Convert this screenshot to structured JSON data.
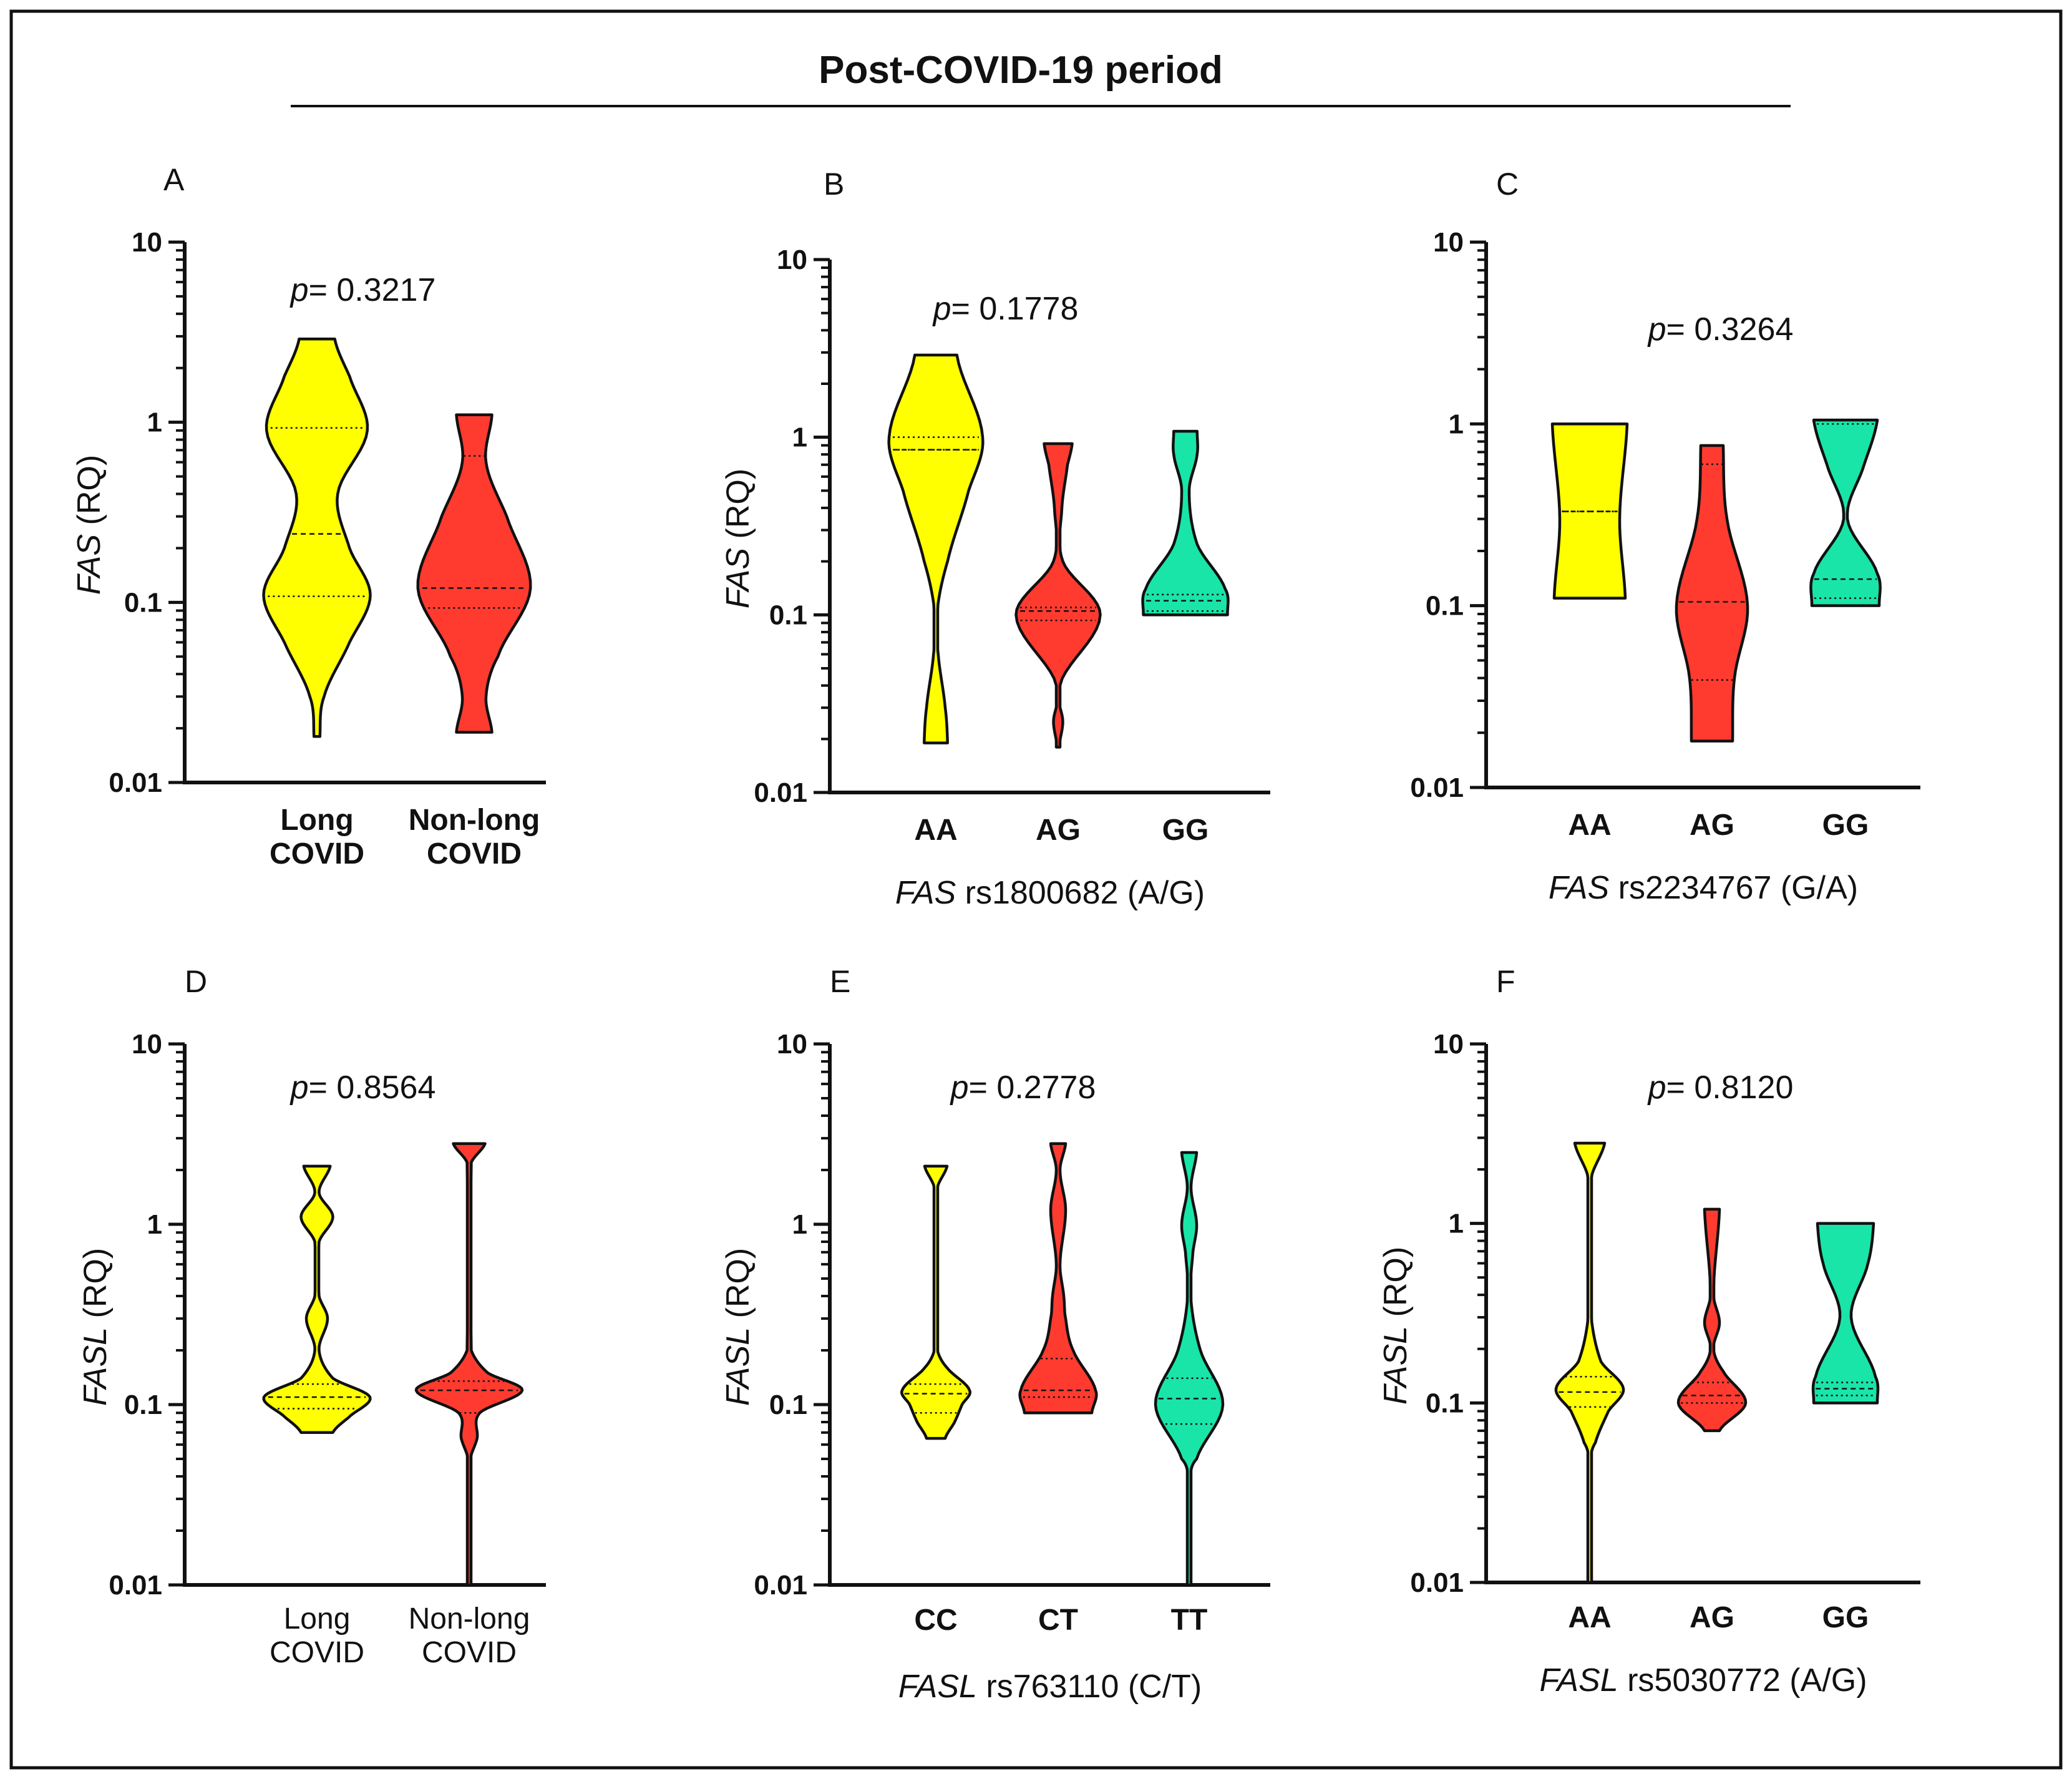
{
  "figure": {
    "title": "Post-COVID-19 period",
    "colors": {
      "yellow": "#FFFF00",
      "red": "#FF3B30",
      "teal": "#19E5A8",
      "stroke": "#111111"
    }
  },
  "chart_data": [
    {
      "id": "A",
      "type": "violin",
      "scale": "log",
      "ylim": [
        0.01,
        10
      ],
      "yticks": [
        "0.01",
        "0.1",
        "1",
        "10"
      ],
      "ylabel_gene": "FAS",
      "ylabel_unit": " (RQ)",
      "p_prefix": "p",
      "p_value": "= 0.3217",
      "xlabel_gene": "",
      "xlabel_rest": "",
      "bold_categories": true,
      "groups": [
        {
          "label": [
            "Long",
            "COVID"
          ],
          "color": "yellow",
          "min": 0.018,
          "max": 2.9,
          "median": 0.24,
          "q1": 0.108,
          "q3": 0.93,
          "profile": [
            [
              0.018,
              0.05
            ],
            [
              0.03,
              0.12
            ],
            [
              0.06,
              0.55
            ],
            [
              0.11,
              0.9
            ],
            [
              0.2,
              0.55
            ],
            [
              0.4,
              0.35
            ],
            [
              0.9,
              0.85
            ],
            [
              1.8,
              0.55
            ],
            [
              2.9,
              0.3
            ]
          ]
        },
        {
          "label": [
            "Non-long",
            "COVID"
          ],
          "color": "red",
          "min": 0.019,
          "max": 1.1,
          "median": 0.12,
          "q1": 0.093,
          "q3": 0.65,
          "profile": [
            [
              0.019,
              0.3
            ],
            [
              0.03,
              0.2
            ],
            [
              0.05,
              0.4
            ],
            [
              0.12,
              0.95
            ],
            [
              0.3,
              0.55
            ],
            [
              0.6,
              0.2
            ],
            [
              1.1,
              0.3
            ]
          ]
        }
      ]
    },
    {
      "id": "B",
      "type": "violin",
      "scale": "log",
      "ylim": [
        0.01,
        10
      ],
      "yticks": [
        "0.01",
        "0.1",
        "1",
        "10"
      ],
      "ylabel_gene": "FAS",
      "ylabel_unit": " (RQ)",
      "p_prefix": "p",
      "p_value": "= 0.1778",
      "xlabel_gene": "FAS",
      "xlabel_rest": " rs1800682 (A/G)",
      "bold_categories": true,
      "groups": [
        {
          "label": [
            "AA"
          ],
          "color": "yellow",
          "min": 0.019,
          "max": 2.9,
          "median": 0.85,
          "q1": 0.85,
          "q3": 1.0,
          "profile": [
            [
              0.019,
              0.25
            ],
            [
              0.03,
              0.2
            ],
            [
              0.06,
              0.05
            ],
            [
              0.1,
              0.02
            ],
            [
              0.2,
              0.25
            ],
            [
              0.5,
              0.7
            ],
            [
              1.0,
              1.0
            ],
            [
              2.9,
              0.45
            ]
          ]
        },
        {
          "label": [
            "AG"
          ],
          "color": "red",
          "min": 0.018,
          "max": 0.92,
          "median": 0.105,
          "q1": 0.093,
          "q3": 0.11,
          "profile": [
            [
              0.018,
              0.02
            ],
            [
              0.025,
              0.1
            ],
            [
              0.04,
              0.03
            ],
            [
              0.1,
              0.9
            ],
            [
              0.2,
              0.1
            ],
            [
              0.4,
              0.08
            ],
            [
              0.7,
              0.2
            ],
            [
              0.92,
              0.3
            ]
          ]
        },
        {
          "label": [
            "GG"
          ],
          "color": "teal",
          "min": 0.1,
          "max": 1.08,
          "median": 0.12,
          "q1": 0.105,
          "q3": 0.13,
          "profile": [
            [
              0.1,
              0.9
            ],
            [
              0.14,
              0.85
            ],
            [
              0.25,
              0.25
            ],
            [
              0.5,
              0.08
            ],
            [
              0.8,
              0.25
            ],
            [
              1.08,
              0.25
            ]
          ]
        }
      ]
    },
    {
      "id": "C",
      "type": "violin",
      "scale": "log",
      "ylim": [
        0.01,
        10
      ],
      "yticks": [
        "0.01",
        "0.1",
        "1",
        "10"
      ],
      "ylabel_gene": "",
      "ylabel_unit": "",
      "p_prefix": "p",
      "p_value": "= 0.3264",
      "xlabel_gene": "FAS",
      "xlabel_rest": " rs2234767 (G/A)",
      "bold_categories": true,
      "groups": [
        {
          "label": [
            "AA"
          ],
          "color": "yellow",
          "min": 0.11,
          "max": 1.0,
          "median": 0.33,
          "q1": 0.33,
          "q3": 0.33,
          "profile": [
            [
              0.11,
              0.95
            ],
            [
              0.3,
              0.8
            ],
            [
              1.0,
              1.0
            ]
          ]
        },
        {
          "label": [
            "AG"
          ],
          "color": "red",
          "min": 0.018,
          "max": 0.76,
          "median": 0.105,
          "q1": 0.039,
          "q3": 0.6,
          "profile": [
            [
              0.018,
              0.55
            ],
            [
              0.04,
              0.6
            ],
            [
              0.1,
              0.95
            ],
            [
              0.3,
              0.4
            ],
            [
              0.76,
              0.3
            ]
          ]
        },
        {
          "label": [
            "GG"
          ],
          "color": "teal",
          "min": 0.1,
          "max": 1.05,
          "median": 0.14,
          "q1": 0.11,
          "q3": 1.0,
          "profile": [
            [
              0.1,
              0.9
            ],
            [
              0.15,
              0.85
            ],
            [
              0.3,
              0.05
            ],
            [
              0.6,
              0.5
            ],
            [
              1.05,
              0.85
            ]
          ]
        }
      ]
    },
    {
      "id": "D",
      "type": "violin",
      "scale": "log",
      "ylim": [
        0.01,
        10
      ],
      "yticks": [
        "0.01",
        "0.1",
        "1",
        "10"
      ],
      "ylabel_gene": "FASL",
      "ylabel_unit": " (RQ)",
      "p_prefix": "p",
      "p_value": "= 0.8564",
      "xlabel_gene": "",
      "xlabel_rest": "",
      "bold_categories": false,
      "groups": [
        {
          "label": [
            "Long",
            "COVID"
          ],
          "color": "yellow",
          "min": 0.07,
          "max": 2.1,
          "median": 0.11,
          "q1": 0.095,
          "q3": 0.13,
          "profile": [
            [
              0.07,
              0.3
            ],
            [
              0.085,
              0.6
            ],
            [
              0.11,
              1.0
            ],
            [
              0.14,
              0.3
            ],
            [
              0.2,
              0.04
            ],
            [
              0.3,
              0.2
            ],
            [
              0.4,
              0.04
            ],
            [
              0.8,
              0.04
            ],
            [
              1.1,
              0.3
            ],
            [
              1.5,
              0.04
            ],
            [
              2.1,
              0.25
            ]
          ]
        },
        {
          "label": [
            "Non-long",
            "COVID"
          ],
          "color": "red",
          "min": 0.01,
          "max": 2.8,
          "median": 0.12,
          "q1": 0.09,
          "q3": 0.135,
          "profile": [
            [
              0.01,
              0.02
            ],
            [
              0.05,
              0.02
            ],
            [
              0.065,
              0.15
            ],
            [
              0.09,
              0.2
            ],
            [
              0.12,
              1.0
            ],
            [
              0.15,
              0.35
            ],
            [
              0.2,
              0.04
            ],
            [
              2.2,
              0.04
            ],
            [
              2.8,
              0.3
            ]
          ]
        }
      ]
    },
    {
      "id": "E",
      "type": "violin",
      "scale": "log",
      "ylim": [
        0.01,
        10
      ],
      "yticks": [
        "0.01",
        "0.1",
        "1",
        "10"
      ],
      "ylabel_gene": "FASL",
      "ylabel_unit": " (RQ)",
      "p_prefix": "p",
      "p_value": "= 0.2778",
      "xlabel_gene": "FASL",
      "xlabel_rest": " rs763110 (C/T)",
      "bold_categories": true,
      "groups": [
        {
          "label": [
            "CC"
          ],
          "color": "yellow",
          "min": 0.065,
          "max": 2.1,
          "median": 0.115,
          "q1": 0.09,
          "q3": 0.13,
          "profile": [
            [
              0.065,
              0.25
            ],
            [
              0.08,
              0.5
            ],
            [
              0.1,
              0.7
            ],
            [
              0.12,
              0.9
            ],
            [
              0.16,
              0.3
            ],
            [
              0.2,
              0.04
            ],
            [
              1.6,
              0.04
            ],
            [
              2.1,
              0.3
            ]
          ]
        },
        {
          "label": [
            "CT"
          ],
          "color": "red",
          "min": 0.09,
          "max": 2.8,
          "median": 0.12,
          "q1": 0.11,
          "q3": 0.18,
          "profile": [
            [
              0.09,
              0.9
            ],
            [
              0.12,
              1.0
            ],
            [
              0.2,
              0.4
            ],
            [
              0.3,
              0.2
            ],
            [
              0.4,
              0.15
            ],
            [
              0.6,
              0.05
            ],
            [
              1.2,
              0.2
            ],
            [
              2.0,
              0.05
            ],
            [
              2.8,
              0.2
            ]
          ]
        },
        {
          "label": [
            "TT"
          ],
          "color": "teal",
          "min": 0.01,
          "max": 2.5,
          "median": 0.108,
          "q1": 0.078,
          "q3": 0.14,
          "profile": [
            [
              0.01,
              0.02
            ],
            [
              0.04,
              0.02
            ],
            [
              0.05,
              0.2
            ],
            [
              0.1,
              0.9
            ],
            [
              0.2,
              0.3
            ],
            [
              0.4,
              0.04
            ],
            [
              0.7,
              0.1
            ],
            [
              1.0,
              0.2
            ],
            [
              1.6,
              0.05
            ],
            [
              2.5,
              0.2
            ]
          ]
        }
      ]
    },
    {
      "id": "F",
      "type": "violin",
      "scale": "log",
      "ylim": [
        0.01,
        10
      ],
      "yticks": [
        "0.01",
        "0.1",
        "1",
        "10"
      ],
      "ylabel_gene": "FASL",
      "ylabel_unit": " (RQ)",
      "p_prefix": "p",
      "p_value": "= 0.8120",
      "xlabel_gene": "FASL",
      "xlabel_rest": " rs5030772 (A/G)",
      "bold_categories": true,
      "groups": [
        {
          "label": [
            "AA"
          ],
          "color": "yellow",
          "min": 0.01,
          "max": 2.8,
          "median": 0.115,
          "q1": 0.095,
          "q3": 0.14,
          "profile": [
            [
              0.01,
              0.02
            ],
            [
              0.05,
              0.02
            ],
            [
              0.06,
              0.15
            ],
            [
              0.09,
              0.5
            ],
            [
              0.12,
              0.9
            ],
            [
              0.17,
              0.3
            ],
            [
              0.3,
              0.04
            ],
            [
              1.8,
              0.04
            ],
            [
              2.8,
              0.4
            ]
          ]
        },
        {
          "label": [
            "AG"
          ],
          "color": "red",
          "min": 0.07,
          "max": 1.2,
          "median": 0.11,
          "q1": 0.1,
          "q3": 0.13,
          "profile": [
            [
              0.07,
              0.2
            ],
            [
              0.1,
              0.9
            ],
            [
              0.15,
              0.3
            ],
            [
              0.2,
              0.04
            ],
            [
              0.28,
              0.2
            ],
            [
              0.4,
              0.04
            ],
            [
              1.2,
              0.2
            ]
          ]
        },
        {
          "label": [
            "GG"
          ],
          "color": "teal",
          "min": 0.1,
          "max": 1.0,
          "median": 0.12,
          "q1": 0.11,
          "q3": 0.13,
          "profile": [
            [
              0.1,
              0.85
            ],
            [
              0.14,
              0.8
            ],
            [
              0.3,
              0.15
            ],
            [
              0.6,
              0.6
            ],
            [
              1.0,
              0.75
            ]
          ]
        }
      ]
    }
  ]
}
